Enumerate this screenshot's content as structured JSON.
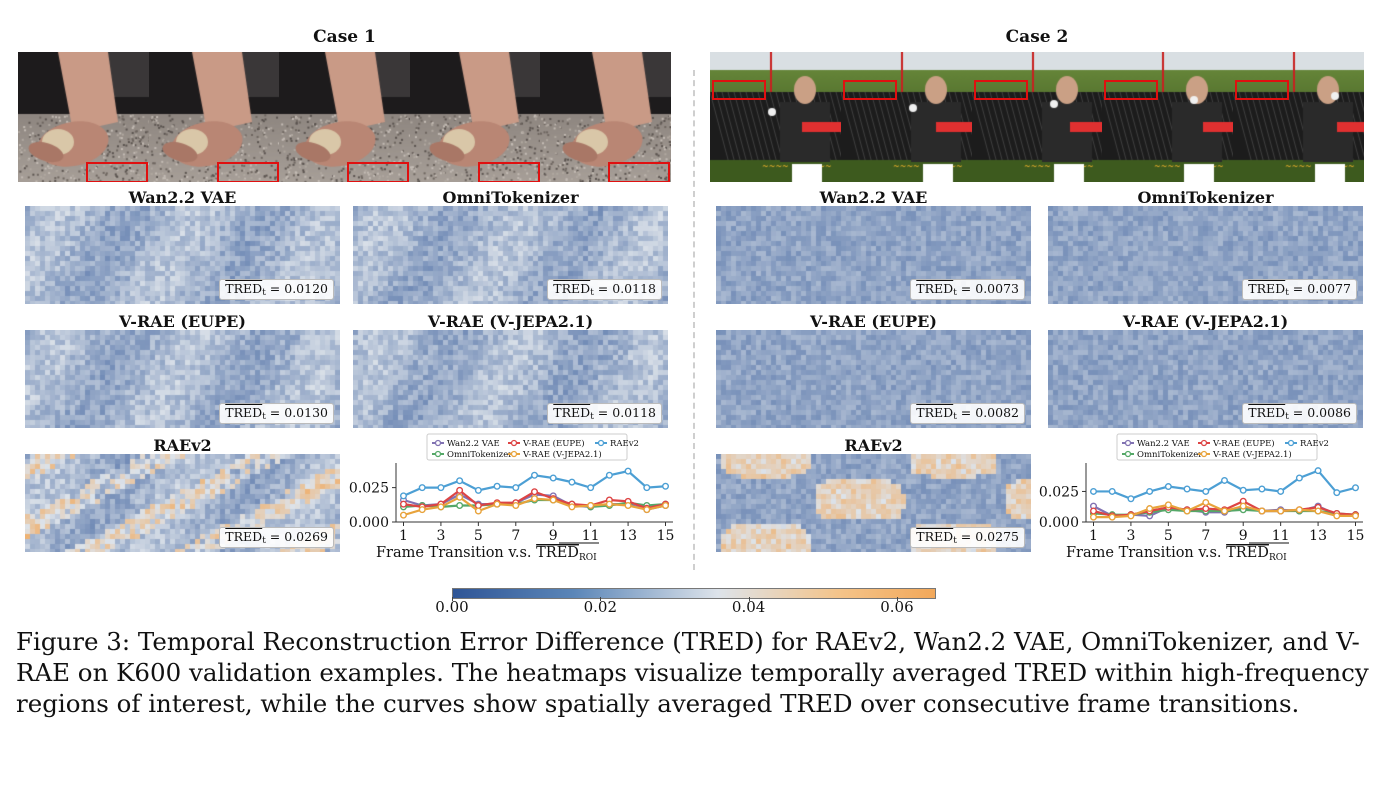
{
  "cases": [
    {
      "title": "Case 1",
      "panels": [
        {
          "title": "Wan2.2 VAE",
          "tred_value": "0.0120",
          "intensity": 0.34
        },
        {
          "title": "OmniTokenizer",
          "tred_value": "0.0118",
          "intensity": 0.33
        },
        {
          "title": "V-RAE (EUPE)",
          "tred_value": "0.0130",
          "intensity": 0.36
        },
        {
          "title": "V-RAE (V-JEPA2.1)",
          "tred_value": "0.0118",
          "intensity": 0.33
        },
        {
          "title": "RAEv2",
          "tred_value": "0.0269",
          "intensity": 0.62
        }
      ]
    },
    {
      "title": "Case 2",
      "panels": [
        {
          "title": "Wan2.2 VAE",
          "tred_value": "0.0073",
          "intensity": 0.2
        },
        {
          "title": "OmniTokenizer",
          "tred_value": "0.0077",
          "intensity": 0.21
        },
        {
          "title": "V-RAE (EUPE)",
          "tred_value": "0.0082",
          "intensity": 0.22
        },
        {
          "title": "V-RAE (V-JEPA2.1)",
          "tred_value": "0.0086",
          "intensity": 0.23
        },
        {
          "title": "RAEv2",
          "tred_value": "0.0275",
          "intensity": 0.6
        }
      ]
    }
  ],
  "tred_label": "TRED",
  "tred_sub": "t",
  "colorbar": {
    "ticks": [
      "0.00",
      "0.02",
      "0.04",
      "0.06"
    ],
    "range": [
      0,
      0.065
    ],
    "colors": [
      "#2f5596",
      "#dde3ea",
      "#f2a85a"
    ]
  },
  "legend": [
    "Wan2.2 VAE",
    "OmniTokenizer",
    "V-RAE (EUPE)",
    "V-RAE (V-JEPA2.1)",
    "RAEv2"
  ],
  "chart_data": [
    {
      "type": "line",
      "xlabel": "Frame Transition v.s. TRED_ROI",
      "x_ticks": [
        1,
        3,
        5,
        7,
        9,
        11,
        13,
        15
      ],
      "y_ticks": [
        "0.000",
        "0.025"
      ],
      "ylim": [
        0,
        0.04
      ],
      "x": [
        1,
        2,
        3,
        4,
        5,
        6,
        7,
        8,
        9,
        10,
        11,
        12,
        13,
        14,
        15
      ],
      "series": [
        {
          "name": "Wan2.2 VAE",
          "color": "#8172b2",
          "values": [
            0.016,
            0.012,
            0.013,
            0.02,
            0.013,
            0.013,
            0.014,
            0.02,
            0.019,
            0.012,
            0.011,
            0.013,
            0.013,
            0.009,
            0.012
          ]
        },
        {
          "name": "OmniTokenizer",
          "color": "#55a868",
          "values": [
            0.011,
            0.012,
            0.011,
            0.012,
            0.012,
            0.013,
            0.013,
            0.016,
            0.016,
            0.013,
            0.011,
            0.012,
            0.014,
            0.012,
            0.013
          ]
        },
        {
          "name": "V-RAE (EUPE)",
          "color": "#dd4444",
          "values": [
            0.013,
            0.011,
            0.013,
            0.023,
            0.012,
            0.014,
            0.014,
            0.022,
            0.017,
            0.013,
            0.012,
            0.016,
            0.015,
            0.01,
            0.013
          ]
        },
        {
          "name": "V-RAE (V-JEPA2.1)",
          "color": "#e8a33c",
          "values": [
            0.005,
            0.009,
            0.011,
            0.018,
            0.008,
            0.013,
            0.012,
            0.017,
            0.016,
            0.011,
            0.012,
            0.013,
            0.012,
            0.009,
            0.012
          ]
        },
        {
          "name": "RAEv2",
          "color": "#4c9fd4",
          "values": [
            0.019,
            0.025,
            0.025,
            0.03,
            0.023,
            0.026,
            0.025,
            0.034,
            0.032,
            0.029,
            0.025,
            0.034,
            0.037,
            0.025,
            0.026
          ]
        }
      ]
    },
    {
      "type": "line",
      "xlabel": "Frame Transition v.s. TRED_ROI",
      "x_ticks": [
        1,
        3,
        5,
        7,
        9,
        11,
        13,
        15
      ],
      "y_ticks": [
        "0.000",
        "0.025"
      ],
      "ylim": [
        0,
        0.045
      ],
      "x": [
        1,
        2,
        3,
        4,
        5,
        6,
        7,
        8,
        9,
        10,
        11,
        12,
        13,
        14,
        15
      ],
      "series": [
        {
          "name": "Wan2.2 VAE",
          "color": "#8172b2",
          "values": [
            0.013,
            0.005,
            0.006,
            0.005,
            0.012,
            0.01,
            0.008,
            0.008,
            0.012,
            0.009,
            0.01,
            0.009,
            0.013,
            0.006,
            0.006
          ]
        },
        {
          "name": "OmniTokenizer",
          "color": "#55a868",
          "values": [
            0.007,
            0.006,
            0.006,
            0.008,
            0.01,
            0.009,
            0.009,
            0.009,
            0.01,
            0.009,
            0.009,
            0.009,
            0.009,
            0.007,
            0.006
          ]
        },
        {
          "name": "V-RAE (EUPE)",
          "color": "#dd4444",
          "values": [
            0.009,
            0.005,
            0.006,
            0.009,
            0.012,
            0.01,
            0.011,
            0.01,
            0.017,
            0.009,
            0.009,
            0.01,
            0.012,
            0.007,
            0.006
          ]
        },
        {
          "name": "V-RAE (V-JEPA2.1)",
          "color": "#e8a33c",
          "values": [
            0.004,
            0.004,
            0.005,
            0.011,
            0.014,
            0.009,
            0.016,
            0.009,
            0.013,
            0.009,
            0.009,
            0.01,
            0.009,
            0.005,
            0.005
          ]
        },
        {
          "name": "RAEv2",
          "color": "#4c9fd4",
          "values": [
            0.025,
            0.025,
            0.019,
            0.025,
            0.029,
            0.027,
            0.025,
            0.034,
            0.026,
            0.027,
            0.025,
            0.036,
            0.042,
            0.024,
            0.028
          ]
        }
      ]
    }
  ],
  "caption": "Figure 3: Temporal Reconstruction Error Difference (TRED) for RAEv2, Wan2.2 VAE, OmniTokenizer, and V-RAE on K600 validation examples. The heatmaps visualize temporally averaged TRED within high-frequency regions of interest, while the curves show spatially averaged TRED over consecutive frame transitions."
}
